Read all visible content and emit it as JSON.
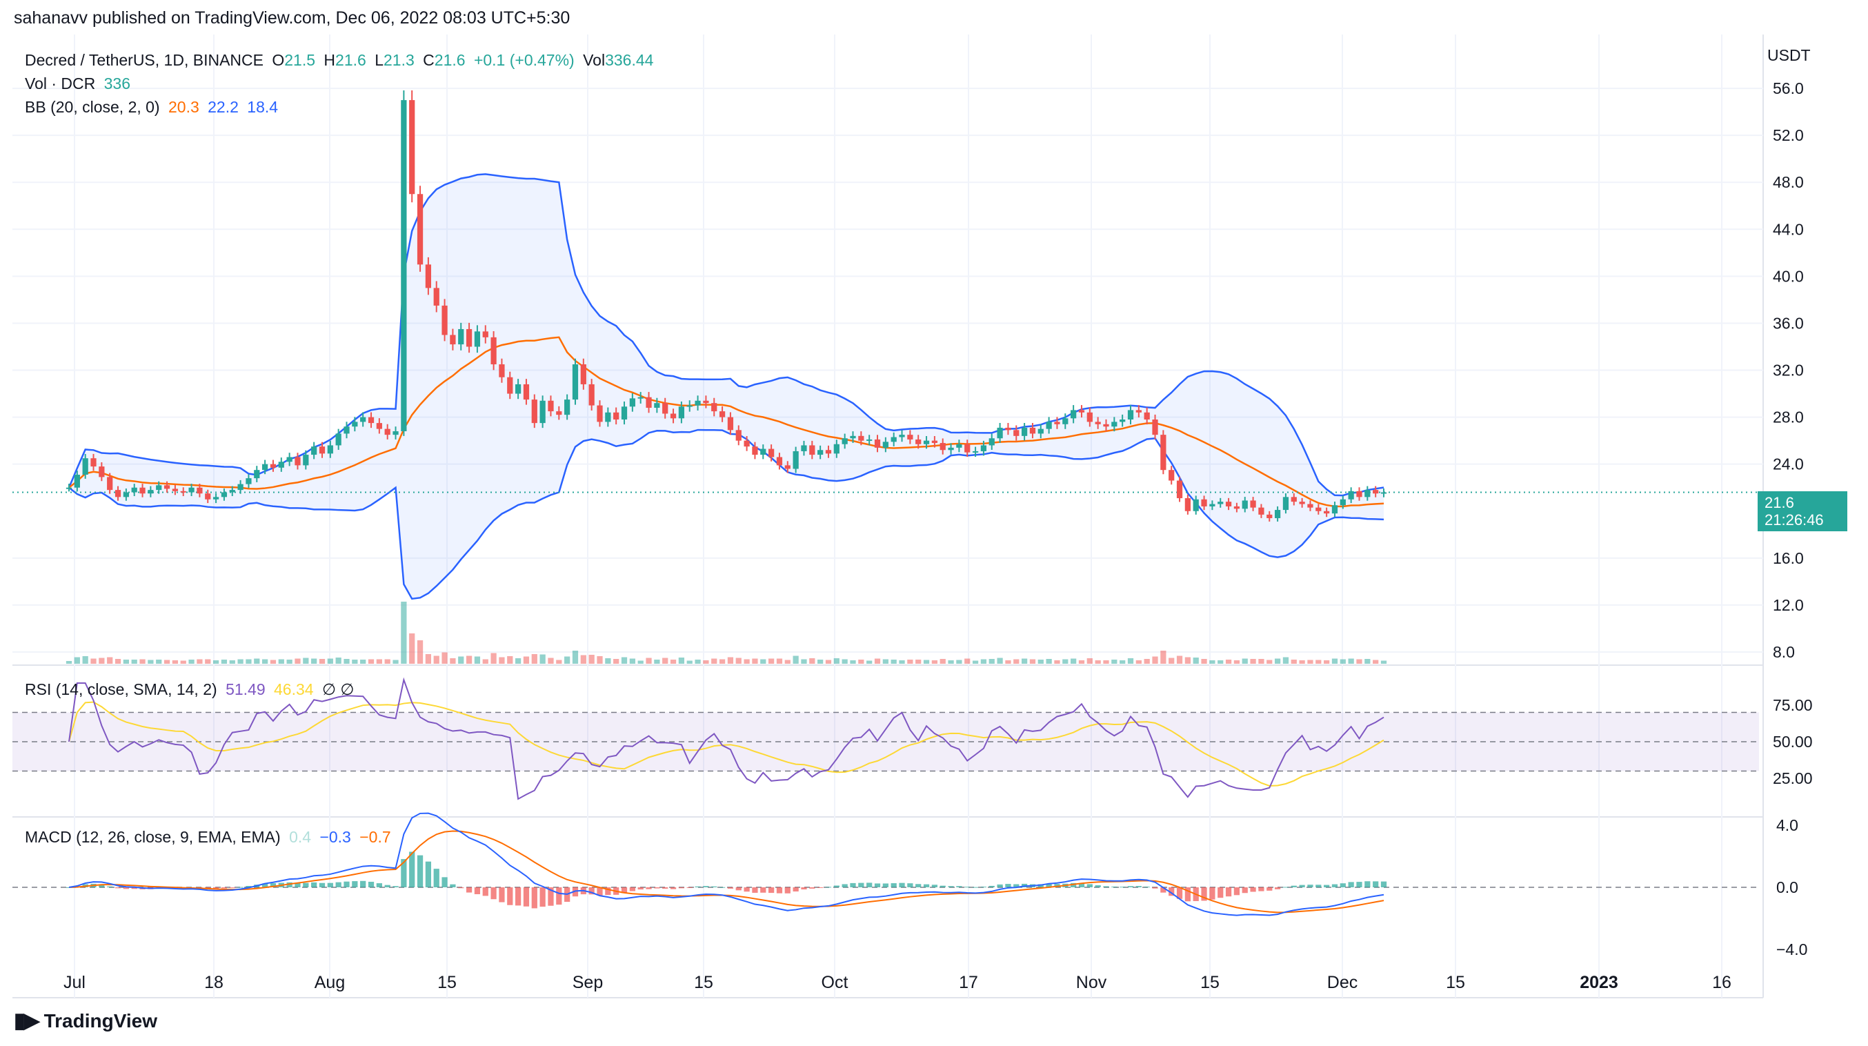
{
  "header": {
    "published": "sahanavv published on TradingView.com, Dec 06, 2022 08:03 UTC+5:30"
  },
  "footer": {
    "brand": "TradingView",
    "logo_icon": "tradingview-logo-icon"
  },
  "legend": {
    "symbol": "Decred / TetherUS, 1D, BINANCE",
    "o_label": "O",
    "o": "21.5",
    "h_label": "H",
    "h": "21.6",
    "l_label": "L",
    "l": "21.3",
    "c_label": "C",
    "c": "21.6",
    "change": "+0.1 (+0.47%)",
    "vol_label": "Vol",
    "vol": "336.44",
    "vol_row_label": "Vol · DCR",
    "vol_row_value": "336",
    "bb_label": "BB (20, close, 2, 0)",
    "bb_mid": "20.3",
    "bb_upper": "22.2",
    "bb_lower": "18.4",
    "rsi_label": "RSI (14, close, SMA, 14, 2)",
    "rsi_value": "51.49",
    "rsi_sma": "46.34",
    "rsi_na": "∅ ∅",
    "macd_label": "MACD (12, 26, close, 9, EMA, EMA)",
    "macd_hist": "0.4",
    "macd_line": "−0.3",
    "macd_signal": "−0.7"
  },
  "price_axis": {
    "unit": "USDT",
    "ticks": [
      "56.0",
      "52.0",
      "48.0",
      "44.0",
      "40.0",
      "36.0",
      "32.0",
      "28.0",
      "24.0",
      "16.0",
      "12.0",
      "8.0"
    ]
  },
  "rsi_axis": {
    "ticks": [
      "75.00",
      "50.00",
      "25.00"
    ]
  },
  "macd_axis": {
    "ticks": [
      "4.0",
      "0.0",
      "−4.0"
    ]
  },
  "time_axis": {
    "ticks": [
      "Jul",
      "18",
      "Aug",
      "15",
      "Sep",
      "15",
      "Oct",
      "17",
      "Nov",
      "15",
      "Dec",
      "15",
      "2023",
      "16"
    ]
  },
  "last_price": {
    "value": "21.6",
    "countdown": "21:26:46"
  },
  "colors": {
    "up": "#26a69a",
    "down": "#ef5350",
    "bb_band": "#2962ff",
    "bb_mid": "#ff6d00",
    "rsi": "#7e57c2",
    "rsi_sma": "#fdd835",
    "macd": "#2962ff",
    "signal": "#ff6d00"
  },
  "chart_data": {
    "type": "candlestick",
    "title": "Decred / TetherUS, 1D, BINANCE",
    "ylabel": "USDT",
    "ylim": [
      7,
      60
    ],
    "x_start": "2022-07-01",
    "x_end": "2022-12-06",
    "last_close": 21.6,
    "closes": [
      22.0,
      23.1,
      24.5,
      23.8,
      22.9,
      21.8,
      21.2,
      21.6,
      22.0,
      21.5,
      21.8,
      22.2,
      21.9,
      21.7,
      21.6,
      22.0,
      21.5,
      21.0,
      21.2,
      21.6,
      21.8,
      22.3,
      22.8,
      23.5,
      24.0,
      23.7,
      24.2,
      24.6,
      23.9,
      24.8,
      25.5,
      24.9,
      25.6,
      26.6,
      27.2,
      27.6,
      28.0,
      27.5,
      27.0,
      26.5,
      26.8,
      55.0,
      47.0,
      41.0,
      39.0,
      37.5,
      35.0,
      34.2,
      35.5,
      34.0,
      35.3,
      34.8,
      32.5,
      31.4,
      30.0,
      30.8,
      29.5,
      27.5,
      29.4,
      28.5,
      28.2,
      29.5,
      32.5,
      30.8,
      29.0,
      27.6,
      28.4,
      27.8,
      28.9,
      29.6,
      29.7,
      28.8,
      29.2,
      28.3,
      27.9,
      28.9,
      29.0,
      29.4,
      29.2,
      28.5,
      28.0,
      26.9,
      26.0,
      25.5,
      24.8,
      25.3,
      24.6,
      23.9,
      23.6,
      25.1,
      25.6,
      24.8,
      25.2,
      24.9,
      25.7,
      26.2,
      26.4,
      26.0,
      26.1,
      25.4,
      25.9,
      26.3,
      26.5,
      26.1,
      25.7,
      26.0,
      25.8,
      25.2,
      25.4,
      25.7,
      25.0,
      25.1,
      25.6,
      26.2,
      27.1,
      26.9,
      26.4,
      27.1,
      26.6,
      27.0,
      27.6,
      27.4,
      27.9,
      28.6,
      28.4,
      27.6,
      27.4,
      27.2,
      27.6,
      27.8,
      28.6,
      28.4,
      27.8,
      26.5,
      23.5,
      22.6,
      21.1,
      20.0,
      21.0,
      20.4,
      20.6,
      20.8,
      20.4,
      20.2,
      20.9,
      20.3,
      19.7,
      19.4,
      20.1,
      21.2,
      20.8,
      20.6,
      20.3,
      20.0,
      19.8,
      20.5,
      21.0,
      21.7,
      21.2,
      21.8,
      21.5,
      21.6
    ],
    "bb_upper_end": 22.2,
    "bb_mid_end": 20.3,
    "bb_lower_end": 18.4,
    "volume_last": 336,
    "rsi_last": 51.49,
    "rsi_sma_last": 46.34,
    "rsi_bands": [
      30,
      50,
      70
    ],
    "macd_last": -0.3,
    "macd_signal_last": -0.7,
    "macd_hist_last": 0.4
  }
}
